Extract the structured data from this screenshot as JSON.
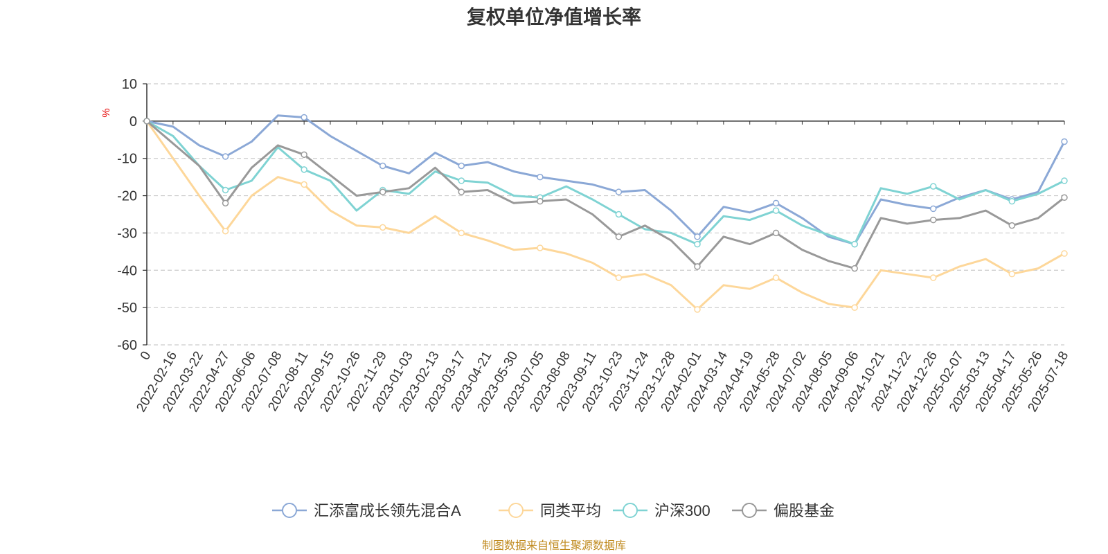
{
  "chart_data": {
    "type": "line",
    "title": "复权单位净值增长率",
    "ylabel": "%",
    "ylim": [
      -60,
      10
    ],
    "yticks": [
      10,
      0,
      -10,
      -20,
      -30,
      -40,
      -50,
      -60
    ],
    "x_tick_labels": [
      "0",
      "2022-02-16",
      "2022-03-22",
      "2022-04-27",
      "2022-06-06",
      "2022-07-08",
      "2022-08-11",
      "2022-09-15",
      "2022-10-26",
      "2022-11-29",
      "2023-01-03",
      "2023-02-13",
      "2023-03-17",
      "2023-04-21",
      "2023-05-30",
      "2023-07-05",
      "2023-08-08",
      "2023-09-11",
      "2023-10-23",
      "2023-11-24",
      "2023-12-28",
      "2024-02-01",
      "2024-03-14",
      "2024-04-19",
      "2024-05-28",
      "2024-07-02",
      "2024-08-05",
      "2024-09-06",
      "2024-10-21",
      "2024-11-22",
      "2024-12-26",
      "2025-02-07",
      "2025-03-13",
      "2025-04-17",
      "2025-05-26",
      "2025-07-18"
    ],
    "grid": true,
    "legend_position": "bottom",
    "series": [
      {
        "name": "汇添富成长领先混合A",
        "color": "#8ba8d6",
        "values": [
          0,
          -1.5,
          -6.5,
          -9.5,
          -5.5,
          1.5,
          1,
          -4,
          -8,
          -12,
          -14,
          -8.5,
          -12,
          -11,
          -13.5,
          -15,
          -16,
          -17,
          -19,
          -18.5,
          -24,
          -31,
          -23,
          -24.5,
          -22,
          -26,
          -31,
          -33,
          -21,
          -22.5,
          -23.5,
          -20.5,
          -18.5,
          -21,
          -19,
          -5.5
        ]
      },
      {
        "name": "同类平均",
        "color": "#fdd79a",
        "values": [
          0,
          -10,
          -20,
          -29.5,
          -20,
          -15,
          -17,
          -24,
          -28,
          -28.5,
          -30,
          -25.5,
          -30,
          -32,
          -34.5,
          -34,
          -35.5,
          -38,
          -42,
          -41,
          -44,
          -50.5,
          -44,
          -45,
          -42,
          -46,
          -49,
          -50,
          -40,
          -41,
          -42,
          -39,
          -37,
          -41,
          -39.5,
          -35.5
        ]
      },
      {
        "name": "沪深300",
        "color": "#7fd3d3",
        "values": [
          0,
          -4,
          -12,
          -18.5,
          -16,
          -7,
          -13,
          -16,
          -24,
          -18.5,
          -19.5,
          -13.5,
          -16,
          -16.5,
          -20,
          -20.5,
          -17.5,
          -21,
          -25,
          -29,
          -30,
          -33,
          -25.5,
          -26.5,
          -24,
          -28,
          -30.5,
          -33,
          -18,
          -19.5,
          -17.5,
          -21,
          -18.5,
          -21.5,
          -19.5,
          -16
        ]
      },
      {
        "name": "偏股基金",
        "color": "#999999",
        "values": [
          0,
          -6,
          -12,
          -22,
          -12.5,
          -6.5,
          -9,
          -14.5,
          -20,
          -19,
          -18,
          -12.5,
          -19,
          -18.5,
          -22,
          -21.5,
          -21,
          -25,
          -31,
          -28,
          -32,
          -39,
          -31,
          -33,
          -30,
          -34.5,
          -37.5,
          -39.5,
          -26,
          -27.5,
          -26.5,
          -26,
          -24,
          -28,
          -26,
          -20.5
        ]
      }
    ]
  },
  "source": "制图数据来自恒生聚源数据库"
}
